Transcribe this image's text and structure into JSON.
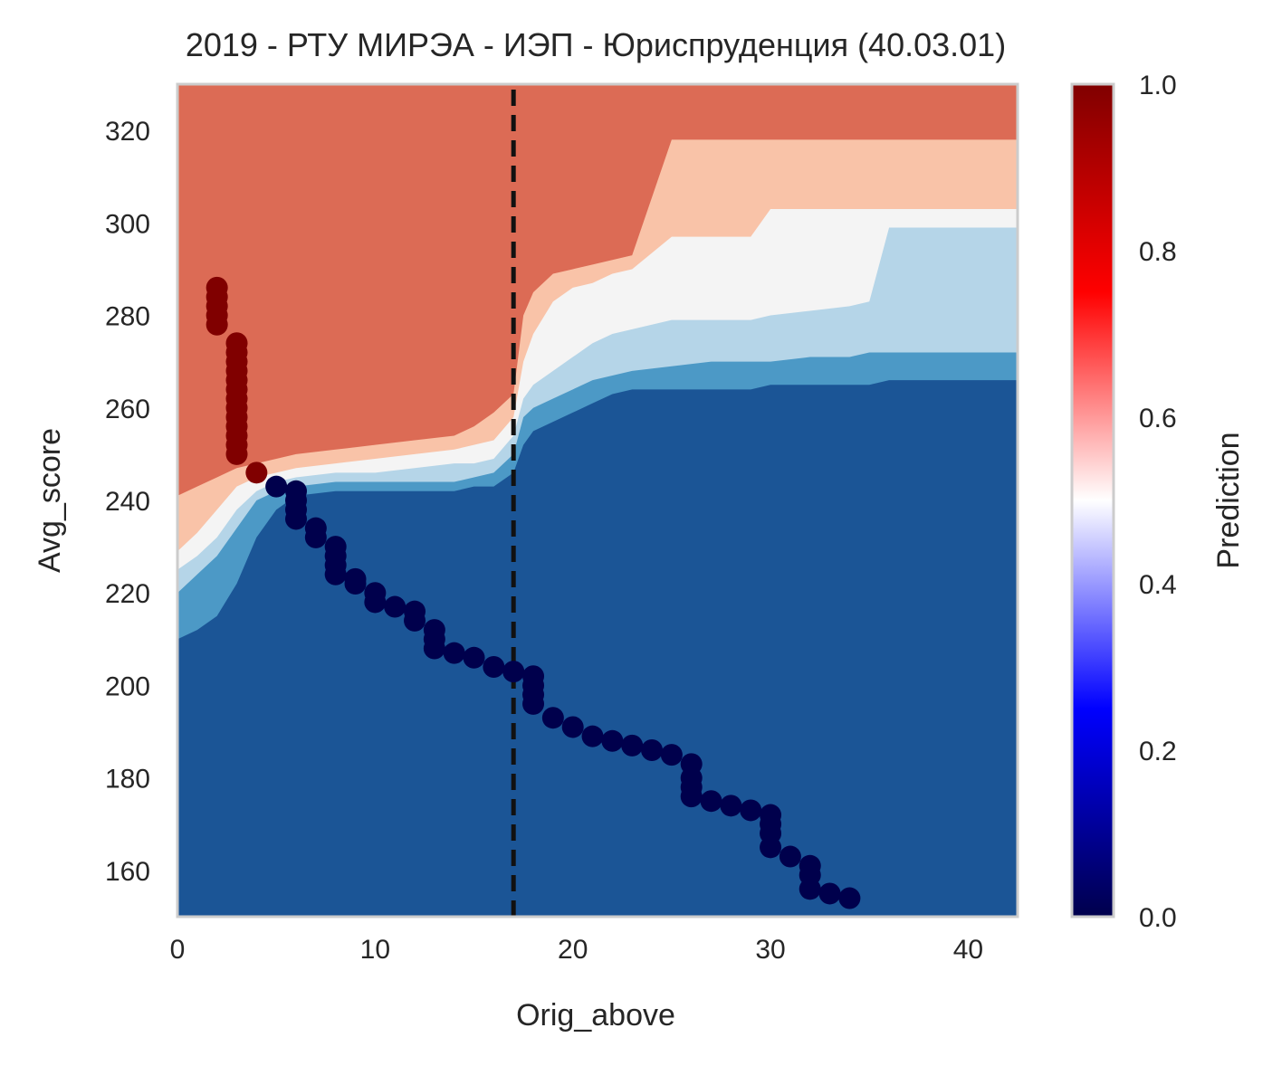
{
  "chart_data": {
    "type": "heatmap",
    "title": "2019 - РТУ МИРЭА - ИЭП - Юриспруденция (40.03.01)",
    "xlabel": "Orig_above",
    "ylabel": "Avg_score",
    "xlim": [
      0,
      42.5
    ],
    "ylim": [
      150,
      330
    ],
    "x_ticks": [
      0,
      10,
      20,
      30,
      40
    ],
    "y_ticks": [
      160,
      180,
      200,
      220,
      240,
      260,
      280,
      300,
      320
    ],
    "grid": false,
    "threshold_line": {
      "x": 17,
      "style": "dashed",
      "color": "#111111"
    },
    "contour_levels": [
      {
        "level": 1.0,
        "color": "#9b1127"
      },
      {
        "level": 0.9,
        "color": "#dc6b55"
      },
      {
        "level": 0.7,
        "color": "#f9c3a8"
      },
      {
        "level": 0.5,
        "color": "#f4f4f4"
      },
      {
        "level": 0.4,
        "color": "#b5d5e8"
      },
      {
        "level": 0.2,
        "color": "#4c99c6"
      },
      {
        "level": 0.0,
        "color": "#1b5596"
      }
    ],
    "boundaries": {
      "x": [
        0,
        1,
        2,
        3,
        4,
        5,
        6,
        8,
        10,
        12,
        14,
        15,
        16,
        17,
        17.5,
        18,
        19,
        20,
        21,
        22,
        23,
        25,
        27,
        29,
        30,
        32,
        34,
        35,
        36,
        38,
        40,
        42.5
      ],
      "lines": [
        {
          "level": 0.9,
          "y": [
            241,
            243,
            245,
            247,
            248,
            249,
            250,
            251,
            252,
            253,
            254,
            256,
            259,
            263,
            280,
            285,
            289,
            290,
            291,
            292,
            293,
            318,
            318,
            318,
            318,
            318,
            318,
            318,
            318,
            318,
            318,
            318
          ]
        },
        {
          "level": 0.7,
          "y": [
            229,
            233,
            238,
            243,
            245,
            246,
            247,
            248,
            249,
            250,
            251,
            252,
            253,
            258,
            270,
            276,
            283,
            286,
            287,
            289,
            290,
            297,
            297,
            297,
            303,
            303,
            303,
            303,
            303,
            303,
            303,
            303
          ]
        },
        {
          "level": 0.5,
          "y": [
            225,
            228,
            232,
            238,
            242,
            244,
            245,
            246,
            246,
            247,
            248,
            248,
            249,
            254,
            262,
            265,
            268,
            271,
            274,
            276,
            277,
            279,
            279,
            279,
            280,
            281,
            282,
            283,
            299,
            299,
            299,
            299
          ]
        },
        {
          "level": 0.4,
          "y": [
            220,
            224,
            228,
            234,
            240,
            242,
            243,
            244,
            244,
            244,
            244,
            245,
            246,
            250,
            258,
            260,
            262,
            264,
            266,
            267,
            268,
            269,
            270,
            270,
            270,
            271,
            271,
            272,
            272,
            272,
            272,
            272
          ]
        },
        {
          "level": 0.2,
          "y": [
            210,
            212,
            215,
            222,
            232,
            238,
            241,
            242,
            242,
            242,
            242,
            243,
            243,
            246,
            252,
            255,
            257,
            259,
            261,
            263,
            264,
            264,
            264,
            264,
            265,
            265,
            265,
            265,
            266,
            266,
            266,
            266
          ]
        }
      ]
    },
    "series": [
      {
        "colour_value": 1.0,
        "x": [
          2,
          2,
          2,
          2,
          2,
          3,
          3,
          3,
          3,
          3,
          3,
          3,
          3,
          3,
          3,
          3,
          3,
          3,
          4
        ],
        "y": [
          286,
          284,
          282,
          280,
          278,
          274,
          272,
          270,
          268,
          266,
          264,
          262,
          260,
          258,
          256,
          254,
          252,
          250,
          246
        ]
      },
      {
        "colour_value": 0.0,
        "x": [
          5,
          6,
          6,
          6,
          6,
          7,
          7,
          8,
          8,
          8,
          8,
          9,
          9,
          10,
          10,
          11,
          12,
          12,
          13,
          13,
          13,
          14,
          15,
          16,
          17,
          18,
          18,
          18,
          18,
          19,
          20,
          21,
          22,
          23,
          24,
          25,
          26,
          26,
          26,
          26,
          27,
          28,
          29,
          30,
          30,
          30,
          30,
          31,
          32,
          32,
          32,
          33,
          34
        ],
        "y": [
          243,
          242,
          240,
          238,
          236,
          234,
          232,
          230,
          228,
          226,
          224,
          223,
          222,
          220,
          218,
          217,
          216,
          214,
          212,
          210,
          208,
          207,
          206,
          204,
          203,
          202,
          200,
          198,
          196,
          193,
          191,
          189,
          188,
          187,
          186,
          185,
          183,
          180,
          178,
          176,
          175,
          174,
          173,
          172,
          170,
          168,
          165,
          163,
          161,
          159,
          156,
          155,
          154
        ]
      }
    ],
    "colorbar": {
      "label": "Prediction",
      "range": [
        0,
        1
      ],
      "ticks": [
        "0.0",
        "0.2",
        "0.4",
        "0.6",
        "0.8",
        "1.0"
      ],
      "colormap": "seismic"
    }
  }
}
